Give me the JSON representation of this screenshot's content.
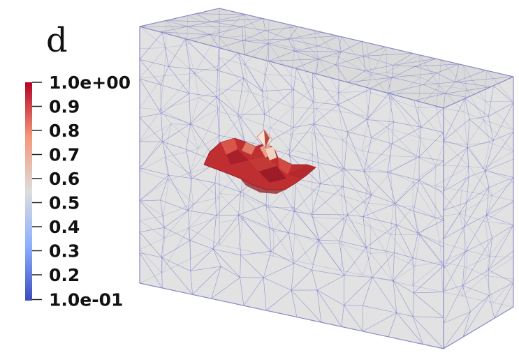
{
  "panel_label": "d",
  "colorbar": {
    "colormap": "cool-to-warm (blue-white-red)",
    "range": [
      0.1,
      1.0
    ],
    "tick_labels": [
      "1.0e+00",
      "0.9",
      "0.8",
      "0.7",
      "0.6",
      "0.5",
      "0.4",
      "0.3",
      "0.2",
      "1.0e-01"
    ],
    "colors": [
      "#3b4cc0",
      "#8db0fe",
      "#dddddd",
      "#f4987a",
      "#b40426"
    ]
  },
  "mesh": {
    "box_face_color": "#d6d6d6",
    "edge_color": "#5b5fc7"
  },
  "crack_surface": {
    "dominant_color": "#bf2e31",
    "value_range": [
      0.6,
      1.0
    ]
  }
}
